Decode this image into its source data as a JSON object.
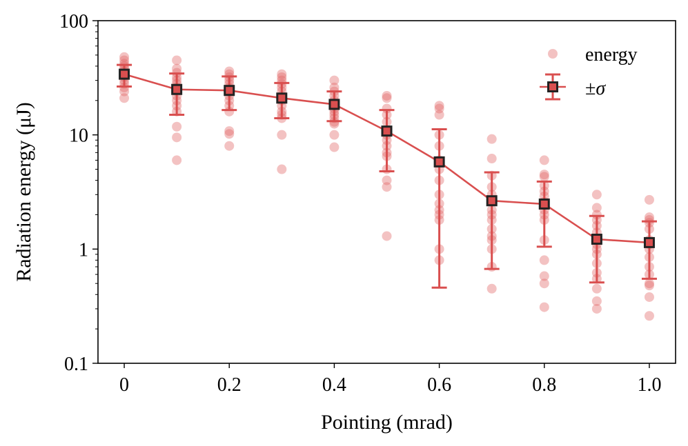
{
  "chart_data": {
    "type": "scatter",
    "xlabel": "Pointing (mrad)",
    "ylabel": "Radiation energy (μJ)",
    "xlim": [
      -0.05,
      1.05
    ],
    "ylim": [
      0.1,
      100
    ],
    "yscale": "log",
    "grid": false,
    "legend_position": "top-right",
    "x_ticks": [
      0,
      0.2,
      0.4,
      0.6,
      0.8,
      1.0
    ],
    "x_tick_labels": [
      "0",
      "0.2",
      "0.4",
      "0.6",
      "0.8",
      "1.0"
    ],
    "y_ticks": [
      0.1,
      1,
      10,
      100
    ],
    "y_tick_labels": [
      "0.1",
      "1",
      "10",
      "100"
    ],
    "series": [
      {
        "name": "energy",
        "kind": "scatter",
        "color": "#e06666",
        "opacity": 0.4,
        "points": [
          {
            "x": 0,
            "y": [
              48,
              45,
              42,
              40,
              38,
              36,
              34,
              32,
              30,
              28,
              26,
              24,
              21
            ]
          },
          {
            "x": 0.1,
            "y": [
              45,
              38,
              35,
              32,
              30,
              28,
              26,
              24,
              22,
              20,
              18,
              16,
              11.8,
              9.5,
              6
            ]
          },
          {
            "x": 0.2,
            "y": [
              36,
              34,
              32,
              30,
              28,
              26,
              24,
              22,
              20,
              18,
              16,
              10.8,
              10.2,
              8
            ]
          },
          {
            "x": 0.3,
            "y": [
              34,
              32,
              30,
              28,
              26,
              24,
              22,
              20,
              18,
              16,
              15,
              14,
              10,
              5
            ]
          },
          {
            "x": 0.4,
            "y": [
              30,
              26,
              24,
              22,
              20,
              19,
              18,
              17,
              16,
              15,
              14,
              13,
              12.5,
              10,
              7.8
            ]
          },
          {
            "x": 0.5,
            "y": [
              22,
              21,
              17,
              15,
              13,
              11,
              10,
              9,
              8,
              7,
              6.5,
              5,
              4,
              3.5,
              1.3
            ]
          },
          {
            "x": 0.6,
            "y": [
              18,
              17,
              15,
              10,
              8,
              6,
              5,
              4,
              3,
              2.5,
              2.2,
              2,
              1.8,
              1,
              0.8
            ]
          },
          {
            "x": 0.7,
            "y": [
              9.2,
              6.2,
              4.4,
              3.5,
              3,
              2.6,
              2.2,
              2,
              1.8,
              1.5,
              1.3,
              1.2,
              1,
              0.7,
              0.45
            ]
          },
          {
            "x": 0.8,
            "y": [
              6,
              4.5,
              4.3,
              3.6,
              3.2,
              2.9,
              2.6,
              2.4,
              2.2,
              2,
              1.8,
              1.2,
              0.8,
              0.58,
              0.5,
              0.31
            ]
          },
          {
            "x": 0.9,
            "y": [
              3,
              2.3,
              2,
              1.8,
              1.6,
              1.4,
              1.2,
              1.1,
              1,
              0.9,
              0.75,
              0.62,
              0.55,
              0.45,
              0.35,
              0.3
            ]
          },
          {
            "x": 1.0,
            "y": [
              2.7,
              1.9,
              1.8,
              1.7,
              1.5,
              1.2,
              1.1,
              1,
              0.85,
              0.7,
              0.6,
              0.5,
              0.48,
              0.38,
              0.26
            ]
          }
        ]
      },
      {
        "name": "±σ",
        "kind": "errorbar",
        "line_color": "#d94f4f",
        "marker_edge": "#222222",
        "marker_face": "#d94f4f",
        "x": [
          0,
          0.1,
          0.2,
          0.3,
          0.4,
          0.5,
          0.6,
          0.7,
          0.8,
          0.9,
          1.0
        ],
        "mean": [
          34,
          25,
          24.5,
          21,
          18.5,
          10.8,
          5.8,
          2.65,
          2.48,
          1.22,
          1.14
        ],
        "upper": [
          41,
          34.5,
          32.5,
          28.5,
          24,
          16.5,
          11.2,
          4.7,
          3.9,
          1.95,
          1.75
        ],
        "lower": [
          26.5,
          15,
          16.5,
          14,
          13.2,
          4.8,
          0.46,
          0.67,
          1.05,
          0.51,
          0.55
        ]
      }
    ]
  }
}
